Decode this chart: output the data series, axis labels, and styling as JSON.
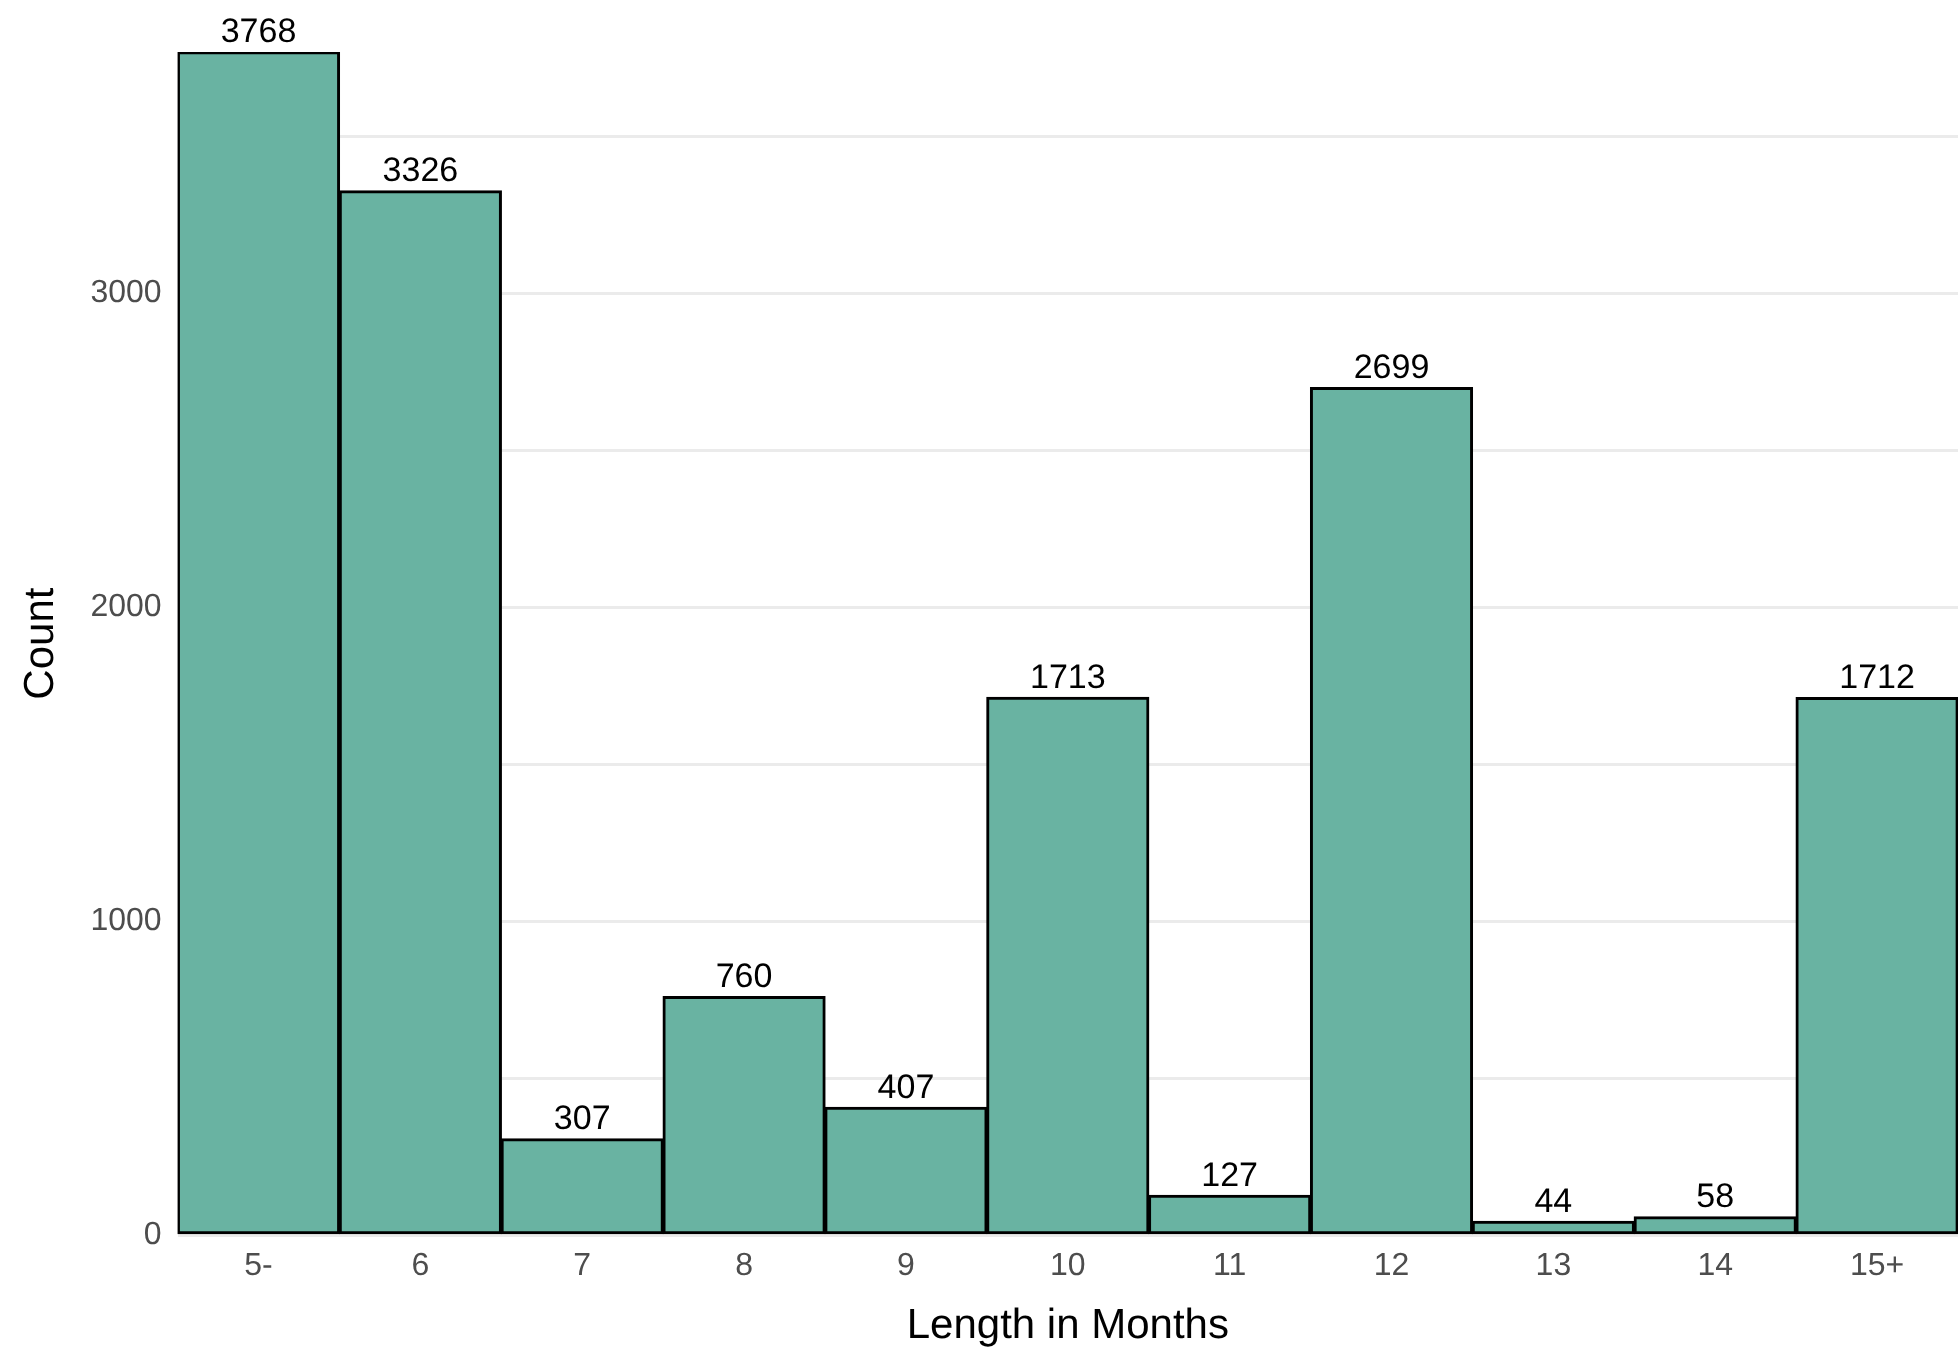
{
  "chart_data": {
    "type": "bar",
    "xlabel": "Length in Months",
    "ylabel": "Count",
    "categories": [
      "5-",
      "6",
      "7",
      "8",
      "9",
      "10",
      "11",
      "12",
      "13",
      "14",
      "15+"
    ],
    "values": [
      3768,
      3326,
      307,
      760,
      407,
      1713,
      127,
      2699,
      44,
      58,
      1712
    ],
    "color": "#69b3a2",
    "ylim": [
      0,
      3768
    ],
    "yticks": [
      0,
      {
        "value": 500,
        "label": null
      },
      1000,
      {
        "value": 1500,
        "label": null
      },
      2000,
      {
        "value": 2500,
        "label": null
      },
      3000,
      {
        "value": 3500,
        "label": null
      }
    ],
    "grid": "y",
    "data_labels": true,
    "legend": false
  }
}
